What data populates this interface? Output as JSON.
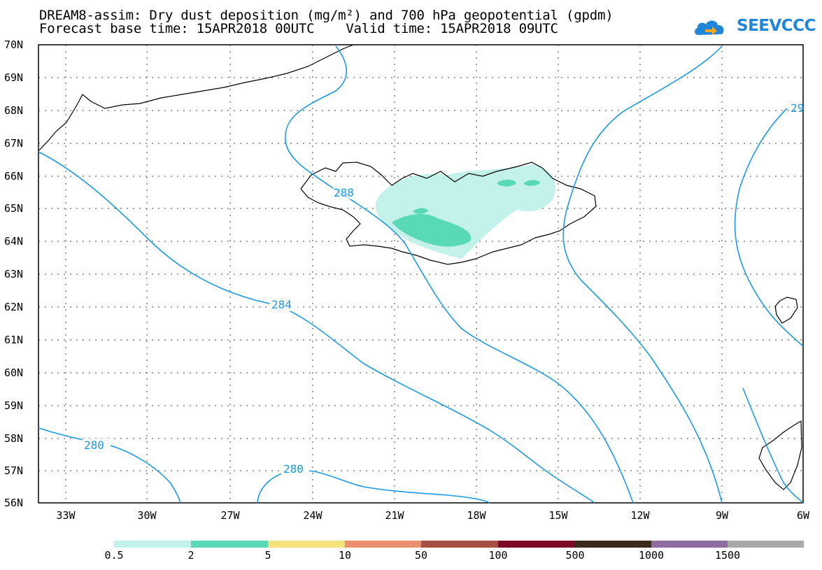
{
  "header": {
    "title_line1": "DREAM8-assim: Dry dust deposition (mg/m²) and 700 hPa geopotential (gpdm)",
    "title_line2": "Forecast base time: 15APR2018 00UTC    Valid time: 15APR2018 09UTC"
  },
  "logo": {
    "text": "SEEVCCC",
    "icon": "cloud-icon",
    "color": "#1f86d9"
  },
  "map": {
    "lat_labels": [
      "70N",
      "69N",
      "68N",
      "67N",
      "66N",
      "65N",
      "64N",
      "63N",
      "62N",
      "61N",
      "60N",
      "59N",
      "58N",
      "57N",
      "56N"
    ],
    "lon_labels": [
      "33W",
      "30W",
      "27W",
      "24W",
      "21W",
      "18W",
      "15W",
      "12W",
      "9W",
      "6W"
    ],
    "contour_color": "#1a9be8",
    "contour_labels": [
      "288",
      "284",
      "280",
      "280",
      "29"
    ]
  },
  "legend": {
    "labels": [
      "0.5",
      "2",
      "5",
      "10",
      "50",
      "100",
      "500",
      "1000",
      "1500"
    ],
    "colors": [
      "#c2f2ea",
      "#5ad9b6",
      "#f6e27a",
      "#ea9070",
      "#a64f45",
      "#7a0a28",
      "#3a2a1e",
      "#8f6ba0",
      "#a9a9a9"
    ]
  }
}
